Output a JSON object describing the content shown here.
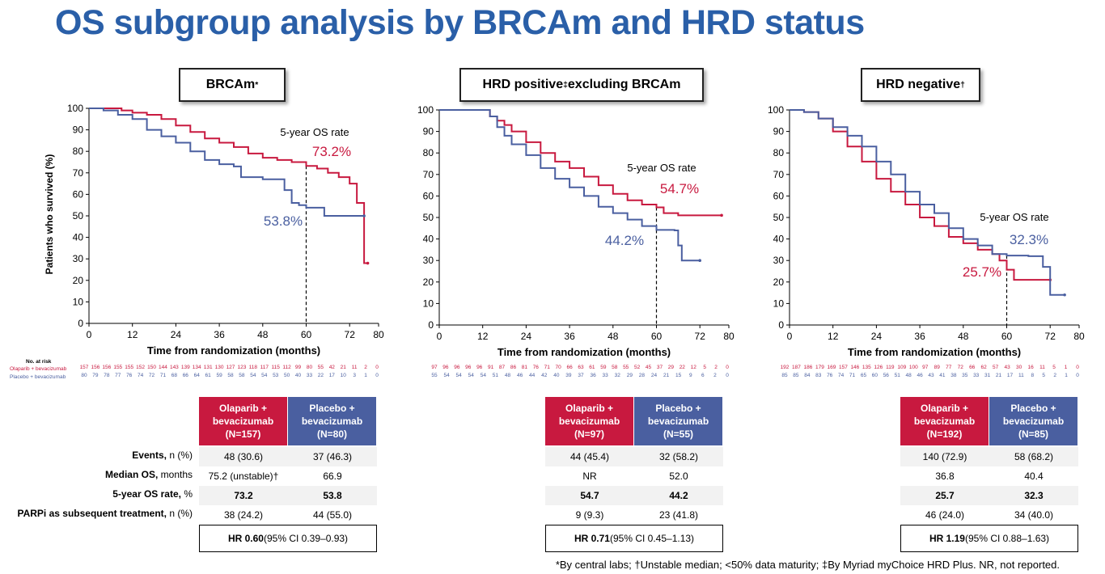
{
  "title": "OS subgroup analysis by BRCAm and HRD status",
  "colors": {
    "olaparib": "#c8193f",
    "placebo": "#4a5fa0",
    "title": "#2a5fa8",
    "row_shade": "#f2f2f2"
  },
  "axis": {
    "ylabel": "Patients who survived (%)",
    "xlabel": "Time from randomization (months)",
    "five_year_label": "5-year OS rate"
  },
  "risk_header": {
    "title": "No. at risk",
    "olaparib": "Olaparib + bevacizumab",
    "placebo": "Placebo + bevacizumab"
  },
  "row_labels": {
    "events_b": "Events,",
    "events_r": " n (%)",
    "median_b": "Median OS,",
    "median_r": " months",
    "rate_b": "5-year OS rate,",
    "rate_r": " %",
    "parpi_b": "PARPi as subsequent treatment,",
    "parpi_r": " n (%)"
  },
  "footnote": "*By central labs; †Unstable median; <50% data maturity; ‡By Myriad myChoice HRD Plus. NR, not reported.",
  "chart_data": [
    {
      "type": "line",
      "title_main": "BRCAm",
      "title_sup": "*",
      "title_rest": "",
      "xlabel": "Time from randomization (months)",
      "ylabel": "Patients who survived (%)",
      "xlim": [
        0,
        80
      ],
      "ylim": [
        0,
        100
      ],
      "xticks": [
        0,
        12,
        24,
        36,
        48,
        60,
        72,
        80
      ],
      "yticks": [
        0,
        10,
        20,
        30,
        40,
        50,
        60,
        70,
        80,
        90,
        100
      ],
      "marker_x": 60,
      "annotations": {
        "olaparib_rate": "73.2%",
        "placebo_rate": "53.8%"
      },
      "series": [
        {
          "name": "Olaparib + bevacizumab",
          "points": [
            [
              0,
              100
            ],
            [
              5,
              100
            ],
            [
              9,
              99
            ],
            [
              12,
              98
            ],
            [
              16,
              97
            ],
            [
              20,
              95
            ],
            [
              24,
              92
            ],
            [
              28,
              89
            ],
            [
              32,
              86
            ],
            [
              36,
              84
            ],
            [
              40,
              82
            ],
            [
              44,
              79
            ],
            [
              48,
              77
            ],
            [
              52,
              76
            ],
            [
              56,
              75
            ],
            [
              60,
              73.2
            ],
            [
              63,
              72
            ],
            [
              66,
              70
            ],
            [
              69,
              68
            ],
            [
              72,
              65
            ],
            [
              74,
              56
            ],
            [
              76,
              28
            ],
            [
              77,
              28
            ]
          ],
          "risk": [
            "157",
            "156",
            "156",
            "155",
            "155",
            "152",
            "150",
            "144",
            "143",
            "139",
            "134",
            "131",
            "130",
            "127",
            "123",
            "118",
            "117",
            "115",
            "112",
            "99",
            "80",
            "55",
            "42",
            "21",
            "11",
            "2",
            "0"
          ]
        },
        {
          "name": "Placebo + bevacizumab",
          "points": [
            [
              0,
              100
            ],
            [
              4,
              99
            ],
            [
              8,
              97
            ],
            [
              12,
              95
            ],
            [
              16,
              90
            ],
            [
              20,
              87
            ],
            [
              24,
              84
            ],
            [
              28,
              80
            ],
            [
              32,
              76
            ],
            [
              36,
              74
            ],
            [
              40,
              73
            ],
            [
              42,
              68
            ],
            [
              48,
              67
            ],
            [
              54,
              62
            ],
            [
              56,
              56
            ],
            [
              58,
              55
            ],
            [
              60,
              53.8
            ],
            [
              65,
              50
            ],
            [
              70,
              50
            ],
            [
              76,
              50
            ]
          ],
          "risk": [
            "80",
            "79",
            "78",
            "77",
            "76",
            "74",
            "72",
            "71",
            "68",
            "66",
            "64",
            "61",
            "59",
            "58",
            "58",
            "54",
            "54",
            "53",
            "50",
            "40",
            "33",
            "22",
            "17",
            "10",
            "3",
            "1",
            "0"
          ]
        }
      ],
      "table": {
        "events": [
          "48 (30.6)",
          "37 (46.3)"
        ],
        "median": [
          "75.2 (unstable)†",
          "66.9"
        ],
        "rate": [
          "73.2",
          "53.8"
        ],
        "parpi": [
          "38 (24.2)",
          "44 (55.0)"
        ],
        "hr_b": "HR 0.60",
        "hr_r": " (95% CI 0.39–0.93)",
        "header_o": [
          "Olaparib +",
          "bevacizumab",
          "(N=157)"
        ],
        "header_p": [
          "Placebo +",
          "bevacizumab",
          "(N=80)"
        ]
      }
    },
    {
      "type": "line",
      "title_main": "HRD positive",
      "title_sup": "‡",
      "title_rest": " excluding BRCAm",
      "xlabel": "Time from randomization (months)",
      "ylabel": "",
      "xlim": [
        0,
        80
      ],
      "ylim": [
        0,
        100
      ],
      "xticks": [
        0,
        12,
        24,
        36,
        48,
        60,
        72,
        80
      ],
      "yticks": [
        0,
        10,
        20,
        30,
        40,
        50,
        60,
        70,
        80,
        90,
        100
      ],
      "marker_x": 60,
      "annotations": {
        "olaparib_rate": "54.7%",
        "placebo_rate": "44.2%"
      },
      "series": [
        {
          "name": "Olaparib + bevacizumab",
          "points": [
            [
              0,
              100
            ],
            [
              12,
              100
            ],
            [
              14,
              97
            ],
            [
              16,
              95
            ],
            [
              18,
              93
            ],
            [
              20,
              90
            ],
            [
              24,
              85
            ],
            [
              28,
              80
            ],
            [
              32,
              76
            ],
            [
              36,
              73
            ],
            [
              40,
              69
            ],
            [
              44,
              65
            ],
            [
              48,
              61
            ],
            [
              52,
              58
            ],
            [
              56,
              56
            ],
            [
              60,
              54.7
            ],
            [
              62,
              52
            ],
            [
              66,
              51
            ],
            [
              72,
              51
            ],
            [
              78,
              51
            ]
          ],
          "risk": [
            "97",
            "96",
            "96",
            "96",
            "96",
            "91",
            "87",
            "86",
            "81",
            "76",
            "71",
            "70",
            "66",
            "63",
            "61",
            "59",
            "58",
            "55",
            "52",
            "45",
            "37",
            "29",
            "22",
            "12",
            "5",
            "2",
            "0"
          ]
        },
        {
          "name": "Placebo + bevacizumab",
          "points": [
            [
              0,
              100
            ],
            [
              12,
              100
            ],
            [
              14,
              97
            ],
            [
              16,
              92
            ],
            [
              18,
              88
            ],
            [
              20,
              84
            ],
            [
              24,
              79
            ],
            [
              28,
              73
            ],
            [
              32,
              68
            ],
            [
              36,
              64
            ],
            [
              40,
              60
            ],
            [
              44,
              55
            ],
            [
              48,
              52
            ],
            [
              52,
              49
            ],
            [
              56,
              46
            ],
            [
              60,
              44.2
            ],
            [
              65,
              44
            ],
            [
              66,
              37
            ],
            [
              67,
              30
            ],
            [
              72,
              30
            ]
          ],
          "risk": [
            "55",
            "54",
            "54",
            "54",
            "54",
            "51",
            "48",
            "46",
            "44",
            "42",
            "40",
            "39",
            "37",
            "36",
            "33",
            "32",
            "29",
            "28",
            "24",
            "21",
            "15",
            "9",
            "6",
            "2",
            "0"
          ]
        }
      ],
      "table": {
        "events": [
          "44 (45.4)",
          "32 (58.2)"
        ],
        "median": [
          "NR",
          "52.0"
        ],
        "rate": [
          "54.7",
          "44.2"
        ],
        "parpi": [
          "9 (9.3)",
          "23 (41.8)"
        ],
        "hr_b": "HR 0.71",
        "hr_r": " (95% CI 0.45–1.13)",
        "header_o": [
          "Olaparib +",
          "bevacizumab",
          "(N=97)"
        ],
        "header_p": [
          "Placebo +",
          "bevacizumab",
          "(N=55)"
        ]
      }
    },
    {
      "type": "line",
      "title_main": "HRD negative",
      "title_sup": "†",
      "title_rest": "",
      "xlabel": "Time from randomization (months)",
      "ylabel": "",
      "xlim": [
        0,
        80
      ],
      "ylim": [
        0,
        100
      ],
      "xticks": [
        0,
        12,
        24,
        36,
        48,
        60,
        72,
        80
      ],
      "yticks": [
        0,
        10,
        20,
        30,
        40,
        50,
        60,
        70,
        80,
        90,
        100
      ],
      "marker_x": 60,
      "annotations": {
        "olaparib_rate": "25.7%",
        "placebo_rate": "32.3%"
      },
      "series": [
        {
          "name": "Olaparib + bevacizumab",
          "points": [
            [
              0,
              100
            ],
            [
              4,
              99
            ],
            [
              8,
              96
            ],
            [
              12,
              90
            ],
            [
              16,
              83
            ],
            [
              20,
              76
            ],
            [
              24,
              68
            ],
            [
              28,
              62
            ],
            [
              32,
              56
            ],
            [
              36,
              50
            ],
            [
              40,
              46
            ],
            [
              44,
              41
            ],
            [
              48,
              38
            ],
            [
              52,
              35
            ],
            [
              56,
              33
            ],
            [
              58,
              30
            ],
            [
              60,
              25.7
            ],
            [
              62,
              21
            ],
            [
              66,
              21
            ],
            [
              72,
              21
            ]
          ],
          "risk": [
            "192",
            "187",
            "186",
            "179",
            "169",
            "157",
            "146",
            "135",
            "126",
            "119",
            "109",
            "100",
            "97",
            "89",
            "77",
            "72",
            "66",
            "62",
            "57",
            "43",
            "30",
            "16",
            "11",
            "5",
            "1",
            "0"
          ]
        },
        {
          "name": "Placebo + bevacizumab",
          "points": [
            [
              0,
              100
            ],
            [
              4,
              99
            ],
            [
              8,
              96
            ],
            [
              12,
              92
            ],
            [
              16,
              88
            ],
            [
              20,
              83
            ],
            [
              24,
              76
            ],
            [
              28,
              70
            ],
            [
              32,
              62
            ],
            [
              36,
              56
            ],
            [
              40,
              52
            ],
            [
              44,
              45
            ],
            [
              48,
              40
            ],
            [
              52,
              37
            ],
            [
              56,
              33
            ],
            [
              60,
              32.3
            ],
            [
              66,
              32
            ],
            [
              70,
              27
            ],
            [
              72,
              14
            ],
            [
              76,
              14
            ]
          ],
          "risk": [
            "85",
            "85",
            "84",
            "83",
            "76",
            "74",
            "71",
            "65",
            "60",
            "56",
            "51",
            "48",
            "46",
            "43",
            "41",
            "38",
            "35",
            "33",
            "31",
            "21",
            "17",
            "11",
            "8",
            "5",
            "2",
            "1",
            "0"
          ]
        }
      ],
      "table": {
        "events": [
          "140 (72.9)",
          "58 (68.2)"
        ],
        "median": [
          "36.8",
          "40.4"
        ],
        "rate": [
          "25.7",
          "32.3"
        ],
        "parpi": [
          "46 (24.0)",
          "34 (40.0)"
        ],
        "hr_b": "HR 1.19",
        "hr_r": " (95% CI 0.88–1.63)",
        "header_o": [
          "Olaparib +",
          "bevacizumab",
          "(N=192)"
        ],
        "header_p": [
          "Placebo +",
          "bevacizumab",
          "(N=85)"
        ]
      }
    }
  ]
}
